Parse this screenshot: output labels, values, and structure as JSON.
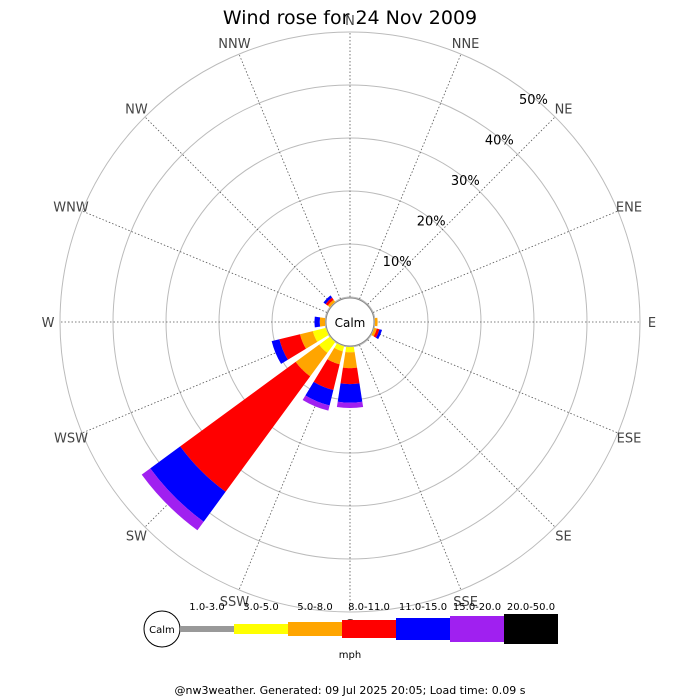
{
  "chart_data": {
    "type": "wind-rose",
    "title": "Wind rose for 24 Nov 2009",
    "directions": [
      "N",
      "NNE",
      "NE",
      "ENE",
      "E",
      "ESE",
      "SE",
      "SSE",
      "S",
      "SSW",
      "SW",
      "WSW",
      "W",
      "WNW",
      "NW",
      "NNW"
    ],
    "radial_ticks": [
      "10%",
      "20%",
      "30%",
      "40%",
      "50%"
    ],
    "radial_max_percent": 50,
    "calm_label": "Calm",
    "speed_unit": "mph",
    "speed_bins": [
      {
        "label": "1.0-3.0",
        "color": "#999999"
      },
      {
        "label": "3.0-5.0",
        "color": "#ffff00"
      },
      {
        "label": "5.0-8.0",
        "color": "#ffa500"
      },
      {
        "label": "8.0-11.0",
        "color": "#ff0000"
      },
      {
        "label": "11.0-15.0",
        "color": "#0000ff"
      },
      {
        "label": "15.0-20.0",
        "color": "#a020f0"
      },
      {
        "label": "20.0-50.0",
        "color": "#000000"
      }
    ],
    "series": [
      {
        "direction": "N",
        "values": [
          0.0,
          0.0,
          0.0,
          0.0,
          0.0,
          0.0,
          0.0
        ]
      },
      {
        "direction": "NNE",
        "values": [
          0.0,
          0.0,
          0.0,
          0.0,
          0.0,
          0.0,
          0.0
        ]
      },
      {
        "direction": "NE",
        "values": [
          0.0,
          0.0,
          0.0,
          0.0,
          0.0,
          0.0,
          0.0
        ]
      },
      {
        "direction": "ENE",
        "values": [
          0.0,
          0.0,
          0.0,
          0.0,
          0.0,
          0.0,
          0.0
        ]
      },
      {
        "direction": "E",
        "values": [
          0.0,
          0.0,
          0.5,
          0.0,
          0.0,
          0.0,
          0.0
        ]
      },
      {
        "direction": "ESE",
        "values": [
          0.0,
          0.0,
          0.5,
          0.5,
          0.5,
          0.0,
          0.0
        ]
      },
      {
        "direction": "SE",
        "values": [
          0.0,
          0.0,
          0.0,
          0.0,
          0.0,
          0.0,
          0.0
        ]
      },
      {
        "direction": "SSE",
        "values": [
          0.0,
          0.0,
          0.0,
          0.0,
          0.0,
          0.0,
          0.0
        ]
      },
      {
        "direction": "S",
        "values": [
          0.0,
          1.0,
          3.0,
          3.0,
          3.5,
          1.0,
          0.0
        ]
      },
      {
        "direction": "SSW",
        "values": [
          0.0,
          1.0,
          2.5,
          5.0,
          3.0,
          1.0,
          0.0
        ]
      },
      {
        "direction": "SW",
        "values": [
          0.0,
          2.5,
          5.5,
          27.0,
          7.0,
          2.0,
          0.0
        ]
      },
      {
        "direction": "WSW",
        "values": [
          0.0,
          2.5,
          2.5,
          4.0,
          1.5,
          0.0,
          0.0
        ]
      },
      {
        "direction": "W",
        "values": [
          0.0,
          0.0,
          1.0,
          0.0,
          1.0,
          0.0,
          0.0
        ]
      },
      {
        "direction": "WNW",
        "values": [
          0.0,
          0.0,
          0.0,
          0.0,
          0.0,
          0.0,
          0.0
        ]
      },
      {
        "direction": "NW",
        "values": [
          0.0,
          0.0,
          0.5,
          0.5,
          0.5,
          0.0,
          0.0
        ]
      },
      {
        "direction": "NNW",
        "values": [
          0.0,
          0.0,
          0.0,
          0.0,
          0.0,
          0.0,
          0.0
        ]
      }
    ]
  },
  "footer": "@nw3weather. Generated: 09 Jul 2025 20:05; Load time: 0.09 s"
}
